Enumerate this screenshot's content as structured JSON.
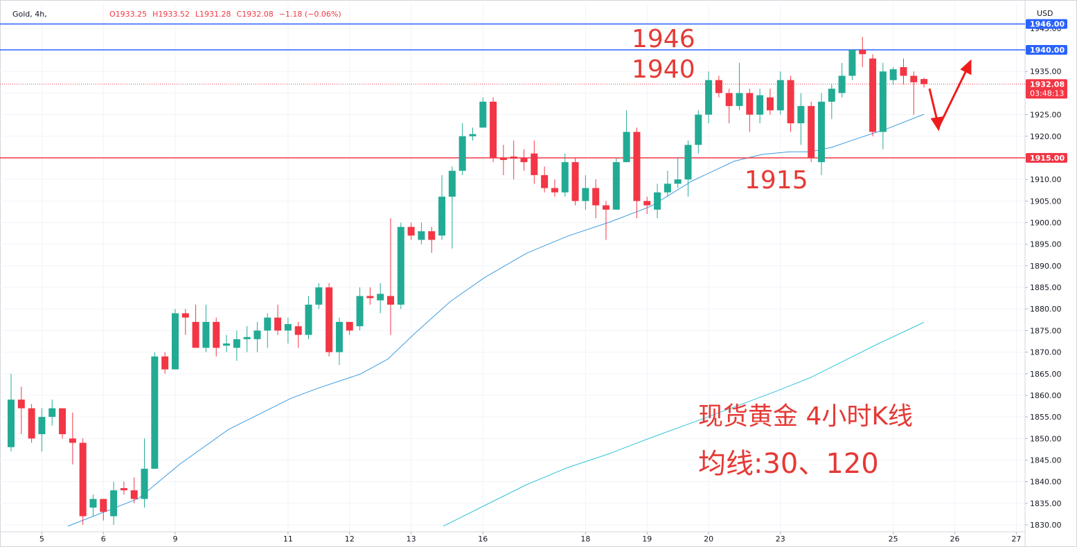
{
  "header": {
    "symbol": "Gold, 4h,",
    "ohlc": [
      "O1933.25",
      "H1933.52",
      "L1931.28",
      "C1932.08",
      "−1.18 (−0.06%)"
    ]
  },
  "chart_data": {
    "type": "candlestick",
    "x": [
      0,
      1,
      2,
      3,
      4,
      5,
      6,
      7,
      8,
      9,
      10,
      11,
      12,
      13,
      14,
      15,
      16,
      17,
      18,
      19,
      20,
      21,
      22,
      23,
      24,
      25,
      26,
      27,
      28,
      29,
      30,
      31,
      32,
      33,
      34,
      35,
      36,
      37,
      38,
      39,
      40,
      41,
      42,
      43,
      44,
      45,
      46,
      47,
      48,
      49,
      50,
      51,
      52,
      53,
      54,
      55,
      56,
      57,
      58,
      59,
      60,
      61,
      62,
      63,
      64,
      65,
      66,
      67,
      68,
      69,
      70,
      71,
      72,
      73,
      74,
      75,
      76,
      77,
      78,
      79,
      80,
      81,
      82,
      83,
      84,
      85,
      86,
      87,
      88,
      89
    ],
    "open": [
      1848,
      1859,
      1857,
      1851,
      1855,
      1857,
      1850,
      1849,
      1834,
      1836,
      1832,
      1838.5,
      1838,
      1836,
      1843,
      1869,
      1866,
      1879,
      1877,
      1871,
      1877,
      1871.5,
      1871,
      1873,
      1873,
      1875,
      1878,
      1875,
      1876,
      1874,
      1881,
      1885,
      1870,
      1877,
      1876,
      1883,
      1882,
      1883,
      1881,
      1899,
      1896,
      1898,
      1897,
      1906,
      1912,
      1920,
      1922,
      1928,
      1915,
      1915.3,
      1915,
      1916,
      1911,
      1908,
      1907,
      1914,
      1905,
      1908,
      1904,
      1903,
      1914,
      1921,
      1905,
      1903,
      1907,
      1909,
      1910,
      1918,
      1925,
      1933,
      1930,
      1927,
      1930,
      1925,
      1929,
      1926,
      1933,
      1923,
      1927,
      1914,
      1928,
      1930,
      1934,
      1940,
      1938,
      1921,
      1933,
      1936,
      1934,
      1933.25
    ],
    "high": [
      1865,
      1862,
      1858,
      1857,
      1859,
      1857,
      1856,
      1850,
      1837,
      1836,
      1840,
      1840,
      1841,
      1850,
      1870,
      1870,
      1880,
      1880,
      1881,
      1881,
      1878,
      1874,
      1875,
      1876,
      1877,
      1879,
      1881,
      1878,
      1877,
      1883,
      1886,
      1886,
      1878,
      1877,
      1885,
      1885,
      1886,
      1901,
      1900,
      1900,
      1900,
      1899,
      1911,
      1913,
      1923,
      1922,
      1929,
      1929,
      1918,
      1919,
      1917,
      1919,
      1913,
      1910,
      1916,
      1915,
      1911,
      1910,
      1905,
      1915,
      1926,
      1922,
      1906,
      1909,
      1912,
      1915,
      1919,
      1926,
      1935,
      1934,
      1931,
      1937,
      1931,
      1931,
      1931,
      1935,
      1934,
      1930,
      1928,
      1930,
      1932,
      1937,
      1940,
      1943,
      1939,
      1937,
      1936,
      1938,
      1935,
      1933.52
    ],
    "low": [
      1847,
      1851,
      1849,
      1847,
      1853,
      1850,
      1844,
      1830,
      1832,
      1831,
      1830,
      1837,
      1835,
      1834,
      1843,
      1865,
      1866,
      1874,
      1871,
      1870,
      1869,
      1870,
      1868,
      1870,
      1870,
      1871,
      1874,
      1872,
      1871,
      1873,
      1880,
      1869,
      1867,
      1874,
      1875,
      1881,
      1879,
      1874,
      1880,
      1896,
      1895,
      1893,
      1896,
      1894,
      1911,
      1919,
      1922,
      1914,
      1911,
      1910,
      1912,
      1909,
      1907,
      1906,
      1906,
      1904,
      1903,
      1901,
      1896,
      1903,
      1914,
      1901,
      1902,
      1901,
      1906,
      1908,
      1906,
      1916,
      1923,
      1929,
      1923,
      1926,
      1921,
      1923,
      1925,
      1925,
      1921,
      1918,
      1914,
      1911,
      1924,
      1929,
      1933,
      1936,
      1920,
      1917,
      1932,
      1932,
      1925,
      1931.28
    ],
    "close": [
      1859,
      1857,
      1850,
      1855,
      1857,
      1851,
      1849,
      1832,
      1836,
      1833,
      1838,
      1838,
      1836,
      1843,
      1869,
      1866,
      1879,
      1878,
      1871,
      1877,
      1871,
      1872,
      1873,
      1873.5,
      1875,
      1878,
      1875,
      1876.5,
      1874,
      1881,
      1885,
      1870,
      1877,
      1875,
      1883,
      1882.5,
      1883.5,
      1881,
      1899,
      1897,
      1898,
      1896,
      1906,
      1912,
      1920,
      1920.5,
      1928,
      1915,
      1914.5,
      1914.8,
      1914,
      1911,
      1908,
      1907,
      1914,
      1905,
      1908,
      1904,
      1903,
      1914,
      1921,
      1905,
      1904,
      1907,
      1909,
      1910,
      1918,
      1925,
      1933,
      1930,
      1927,
      1930,
      1925,
      1929.5,
      1926,
      1933,
      1923,
      1927,
      1915,
      1928,
      1931,
      1934,
      1940,
      1939,
      1921,
      1935,
      1935.5,
      1934,
      1932.5,
      1932.08
    ],
    "up_color": "#22ab94",
    "down_color": "#f23645",
    "lines": [
      {
        "color": "#3d9be0",
        "x": [
          5.54,
          12.42,
          16.47,
          21.2,
          27.28,
          29.98,
          34.03,
          36.73,
          39.43,
          42.81,
          46.18,
          50.24,
          54.29,
          58.34,
          62.39,
          66.44,
          70.49,
          73.19,
          75.89,
          77.92,
          79.95,
          82.65,
          85.35,
          88.99
        ],
        "values": [
          1829.7,
          1836.1,
          1844.1,
          1852.1,
          1859.3,
          1861.7,
          1864.9,
          1868.4,
          1874.5,
          1881.7,
          1887.3,
          1892.9,
          1896.9,
          1900.1,
          1903.8,
          1909.7,
          1914.2,
          1915.8,
          1916.4,
          1916.4,
          1917.4,
          1919.6,
          1921.7,
          1925.1
        ]
      },
      {
        "color": "#2ec4d8",
        "x": [
          42.13,
          46.18,
          50.24,
          54.29,
          58.34,
          62.39,
          66.44,
          70.49,
          74.54,
          77.92,
          81.3,
          84.67,
          88.99
        ],
        "values": [
          1829.7,
          1834.5,
          1839.3,
          1843.3,
          1846.5,
          1850.2,
          1853.7,
          1857.3,
          1860.9,
          1864.1,
          1868.1,
          1872.1,
          1876.9
        ]
      }
    ],
    "hlines": [
      {
        "value": 1946,
        "label": "1946.00",
        "color": "#2962ff"
      },
      {
        "value": 1940,
        "label": "1940.00",
        "color": "#2962ff"
      },
      {
        "value": 1915,
        "label": "1915.00",
        "color": "#f23645"
      },
      {
        "value": 1932.08,
        "label": "1932.08",
        "color": "#f23645",
        "style": "dotted",
        "countdown": "03:48:13"
      }
    ],
    "xlim": [
      -1.08,
      98.85
    ],
    "xticks": [
      {
        "value": 3,
        "label": "5"
      },
      {
        "value": 9,
        "label": "6"
      },
      {
        "value": 16,
        "label": "9"
      },
      {
        "value": 27,
        "label": "11"
      },
      {
        "value": 33,
        "label": "12"
      },
      {
        "value": 39,
        "label": "13"
      },
      {
        "value": 46,
        "label": "16"
      },
      {
        "value": 56,
        "label": "18"
      },
      {
        "value": 62,
        "label": "19"
      },
      {
        "value": 68,
        "label": "20"
      },
      {
        "value": 75,
        "label": "23"
      },
      {
        "value": 86,
        "label": "25"
      },
      {
        "value": 92,
        "label": "26"
      },
      {
        "value": 98,
        "label": "27"
      }
    ],
    "ylim": [
      1828.4,
      1950.75
    ],
    "yticks": [
      {
        "value": 1830,
        "label": "1830.00"
      },
      {
        "value": 1835,
        "label": "1835.00"
      },
      {
        "value": 1840,
        "label": "1840.00"
      },
      {
        "value": 1845,
        "label": "1845.00"
      },
      {
        "value": 1850,
        "label": "1850.00"
      },
      {
        "value": 1855,
        "label": "1855.00"
      },
      {
        "value": 1860,
        "label": "1860.00"
      },
      {
        "value": 1865,
        "label": "1865.00"
      },
      {
        "value": 1870,
        "label": "1870.00"
      },
      {
        "value": 1875,
        "label": "1875.00"
      },
      {
        "value": 1880,
        "label": "1880.00"
      },
      {
        "value": 1885,
        "label": "1885.00"
      },
      {
        "value": 1890,
        "label": "1890.00"
      },
      {
        "value": 1895,
        "label": "1895.00"
      },
      {
        "value": 1900,
        "label": "1900.00"
      },
      {
        "value": 1905,
        "label": "1905.00"
      },
      {
        "value": 1910,
        "label": "1910.00"
      },
      {
        "value": 1915,
        "label": "1915.00"
      },
      {
        "value": 1920,
        "label": "1920.00"
      },
      {
        "value": 1925,
        "label": "1925.00"
      },
      {
        "value": 1930,
        "label": "1930.00"
      },
      {
        "value": 1935,
        "label": "1935.00"
      },
      {
        "value": 1940,
        "label": "1940.00"
      },
      {
        "value": 1945,
        "label": "1945.00"
      }
    ],
    "y_axis_label": "USD",
    "annotations": [
      "1946",
      "1940",
      "1915",
      "现货黄金 4小时K线",
      "均线:30、120"
    ]
  }
}
